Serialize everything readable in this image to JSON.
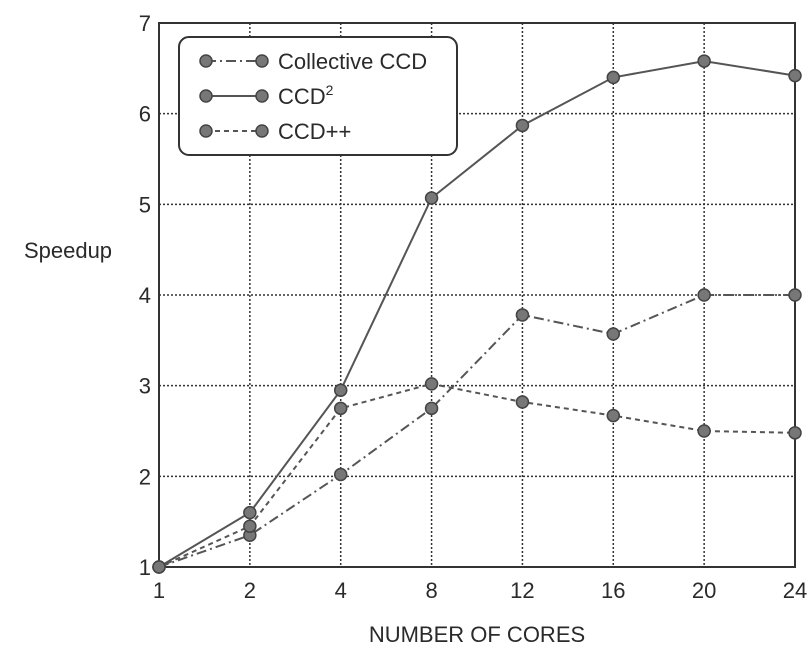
{
  "chart_data": {
    "type": "line",
    "xlabel": "NUMBER OF CORES",
    "ylabel": "Speedup",
    "categories": [
      "1",
      "2",
      "4",
      "8",
      "12",
      "16",
      "20",
      "24"
    ],
    "ylim": [
      1,
      7
    ],
    "yticks": [
      "1",
      "2",
      "3",
      "4",
      "5",
      "6",
      "7"
    ],
    "grid": true,
    "legend_position": "top-left",
    "series": [
      {
        "name": "Collective CCD",
        "line_style": "dash-dot",
        "values": [
          1.0,
          1.35,
          2.02,
          2.75,
          3.78,
          3.57,
          4.0,
          4.0
        ]
      },
      {
        "name": "CCD",
        "name_superscript": "2",
        "line_style": "solid",
        "values": [
          1.0,
          1.6,
          2.95,
          5.07,
          5.87,
          6.4,
          6.58,
          6.42
        ]
      },
      {
        "name": "CCD++",
        "line_style": "dashed",
        "values": [
          1.0,
          1.45,
          2.75,
          3.02,
          2.82,
          2.67,
          2.5,
          2.48
        ]
      }
    ],
    "colors": {
      "line": "#555555",
      "marker": "#777777",
      "grid": "#333333",
      "text": "#2a2a2a"
    }
  }
}
